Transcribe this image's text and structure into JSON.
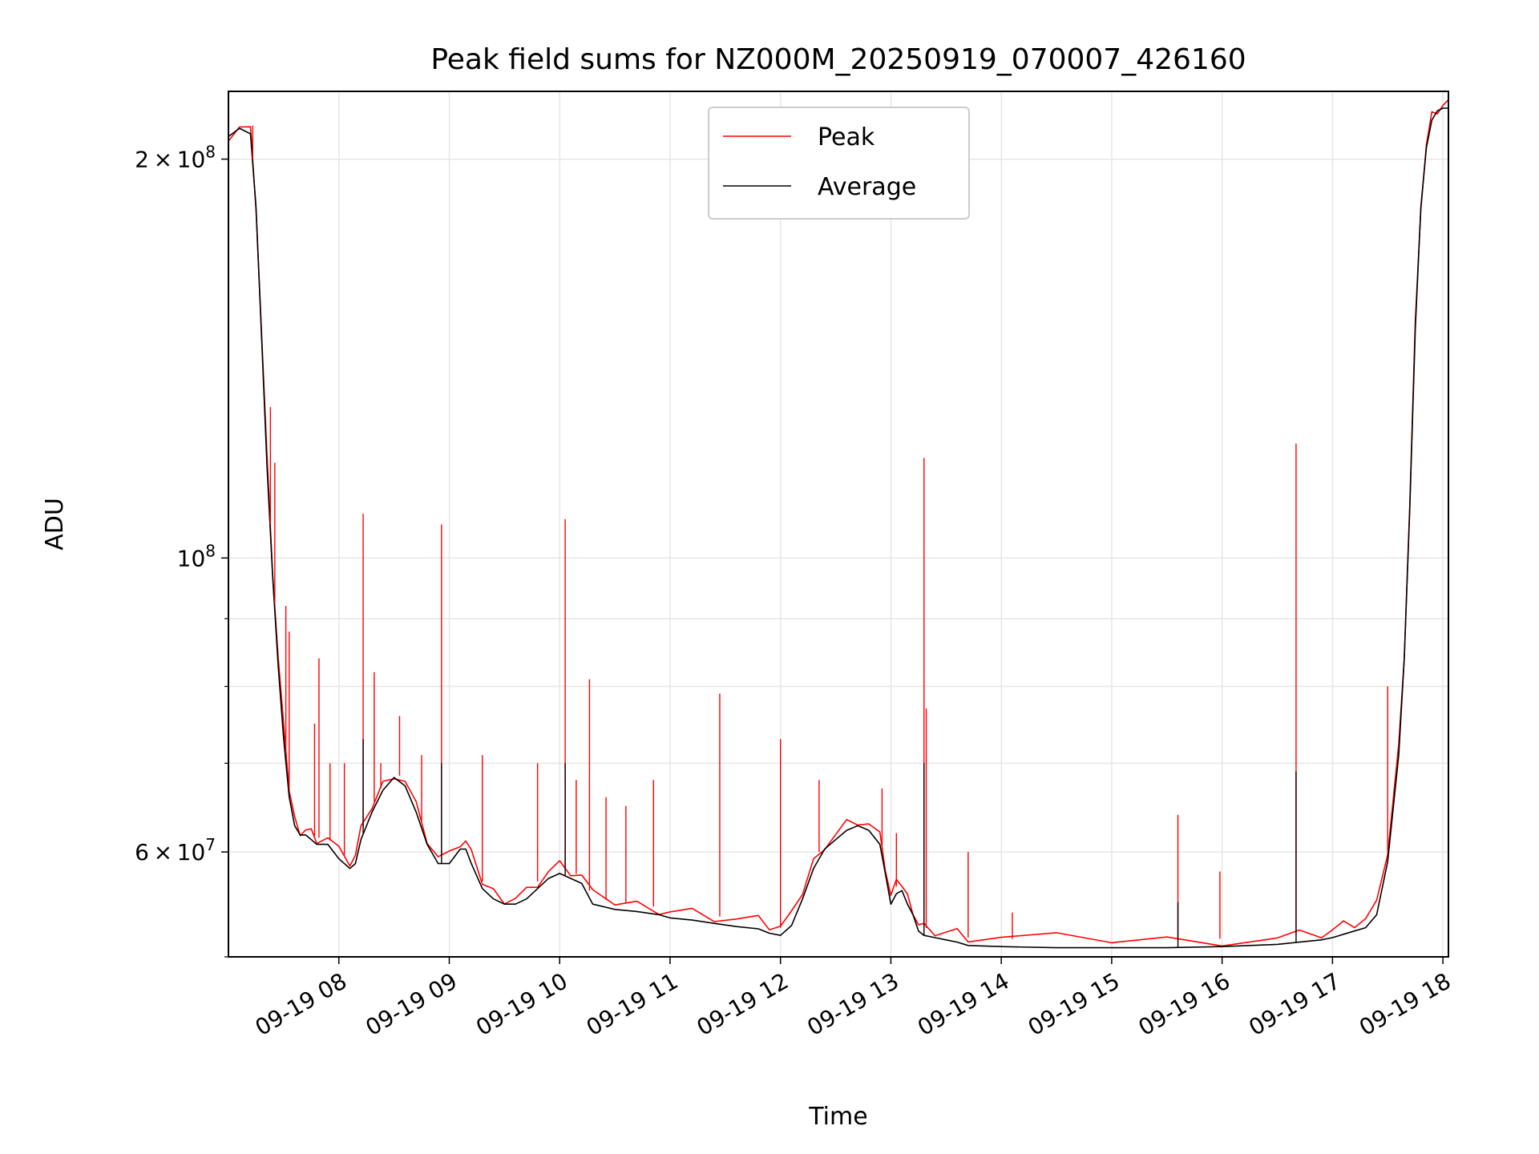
{
  "chart_data": {
    "type": "line",
    "title": "Peak field sums for NZ000M_20250919_070007_426160",
    "xlabel": "Time",
    "ylabel": "ADU",
    "yscale": "log",
    "xlim": [
      7.0,
      18.05
    ],
    "ylim": [
      50000000,
      225000000
    ],
    "grid": true,
    "legend_position": "upper center",
    "x_tick_values": [
      8,
      9,
      10,
      11,
      12,
      13,
      14,
      15,
      16,
      17,
      18
    ],
    "x_tick_labels": [
      "09-19 08",
      "09-19 09",
      "09-19 10",
      "09-19 11",
      "09-19 12",
      "09-19 13",
      "09-19 14",
      "09-19 15",
      "09-19 16",
      "09-19 17",
      "09-19 18"
    ],
    "y_major_ticks": [
      {
        "value": 60000000,
        "base": "6",
        "exp": "7"
      },
      {
        "value": 100000000,
        "base": "",
        "exp": "8"
      },
      {
        "value": 200000000,
        "base": "2",
        "exp": "8"
      }
    ],
    "y_minor_ticks": [
      50000000,
      70000000,
      80000000,
      90000000
    ],
    "series": [
      {
        "name": "Peak",
        "color": "#ff0000",
        "x": [
          7.0,
          7.1,
          7.2,
          7.25,
          7.3,
          7.35,
          7.4,
          7.45,
          7.5,
          7.55,
          7.6,
          7.65,
          7.7,
          7.75,
          7.8,
          7.9,
          8.0,
          8.1,
          8.15,
          8.2,
          8.3,
          8.4,
          8.5,
          8.6,
          8.7,
          8.8,
          8.9,
          9.0,
          9.1,
          9.15,
          9.2,
          9.3,
          9.4,
          9.5,
          9.6,
          9.7,
          9.8,
          9.9,
          10.0,
          10.1,
          10.2,
          10.3,
          10.5,
          10.7,
          10.9,
          11.0,
          11.2,
          11.4,
          11.6,
          11.8,
          11.9,
          12.0,
          12.1,
          12.2,
          12.3,
          12.4,
          12.5,
          12.6,
          12.7,
          12.8,
          12.9,
          12.95,
          13.0,
          13.05,
          13.1,
          13.15,
          13.2,
          13.25,
          13.3,
          13.4,
          13.5,
          13.6,
          13.7,
          14.0,
          14.5,
          15.0,
          15.5,
          16.0,
          16.5,
          16.7,
          16.9,
          17.0,
          17.1,
          17.2,
          17.3,
          17.4,
          17.5,
          17.6,
          17.65,
          17.7,
          17.75,
          17.8,
          17.85,
          17.9,
          17.95,
          18.0,
          18.05
        ],
        "values": [
          209000000,
          212000000,
          210000000,
          185000000,
          148000000,
          118000000,
          98000000,
          84000000,
          74000000,
          67000000,
          63500000,
          62500000,
          62500000,
          62000000,
          61500000,
          61500000,
          60000000,
          59000000,
          59500000,
          62000000,
          65000000,
          67500000,
          69000000,
          68000000,
          65000000,
          61500000,
          59500000,
          59500000,
          61000000,
          61000000,
          59500000,
          57000000,
          56000000,
          55500000,
          55500000,
          56000000,
          57000000,
          58000000,
          58500000,
          58000000,
          57500000,
          55500000,
          55000000,
          54800000,
          54500000,
          54200000,
          54000000,
          53700000,
          53400000,
          53200000,
          52800000,
          52600000,
          53500000,
          56000000,
          59000000,
          61000000,
          62000000,
          63000000,
          63500000,
          63000000,
          61500000,
          58500000,
          55500000,
          56500000,
          56800000,
          55500000,
          54500000,
          53000000,
          52600000,
          52400000,
          52200000,
          52000000,
          51700000,
          51600000,
          51500000,
          51500000,
          51500000,
          51600000,
          51800000,
          52000000,
          52200000,
          52400000,
          52700000,
          53000000,
          53300000,
          54500000,
          60000000,
          72000000,
          85000000,
          110000000,
          150000000,
          185000000,
          205000000,
          215000000,
          218000000,
          219000000,
          219000000
        ]
      },
      {
        "name": "Average",
        "color": "#000000",
        "x": [
          7.0,
          7.1,
          7.2,
          7.25,
          7.3,
          7.35,
          7.4,
          7.45,
          7.5,
          7.55,
          7.6,
          7.65,
          7.7,
          7.75,
          7.8,
          7.9,
          8.0,
          8.1,
          8.15,
          8.2,
          8.3,
          8.4,
          8.5,
          8.6,
          8.7,
          8.8,
          8.9,
          9.0,
          9.1,
          9.15,
          9.2,
          9.3,
          9.4,
          9.5,
          9.6,
          9.7,
          9.8,
          9.9,
          10.0,
          10.1,
          10.2,
          10.3,
          10.5,
          10.7,
          10.9,
          11.0,
          11.2,
          11.4,
          11.6,
          11.8,
          11.9,
          12.0,
          12.1,
          12.2,
          12.3,
          12.4,
          12.5,
          12.6,
          12.7,
          12.8,
          12.9,
          12.95,
          13.0,
          13.05,
          13.1,
          13.15,
          13.2,
          13.25,
          13.3,
          13.4,
          13.5,
          13.6,
          13.7,
          14.0,
          14.5,
          15.0,
          15.5,
          16.0,
          16.5,
          16.7,
          16.9,
          17.0,
          17.1,
          17.2,
          17.3,
          17.4,
          17.5,
          17.6,
          17.65,
          17.7,
          17.75,
          17.8,
          17.85,
          17.9,
          17.95,
          18.0,
          18.05
        ],
        "values": [
          208000000,
          211000000,
          209000000,
          184000000,
          147000000,
          117000000,
          97000000,
          83000000,
          73000000,
          66000000,
          62800000,
          61800000,
          61800000,
          61300000,
          60800000,
          60800000,
          59300000,
          58300000,
          58800000,
          61300000,
          64300000,
          66800000,
          68300000,
          67300000,
          64300000,
          60800000,
          58800000,
          58800000,
          60300000,
          60300000,
          58800000,
          56300000,
          55300000,
          54800000,
          54800000,
          55300000,
          56300000,
          57300000,
          57800000,
          57300000,
          56800000,
          54800000,
          54300000,
          54100000,
          53800000,
          53500000,
          53300000,
          53000000,
          52700000,
          52500000,
          52100000,
          51900000,
          52800000,
          55300000,
          58300000,
          60300000,
          61300000,
          62300000,
          62800000,
          62300000,
          60800000,
          57800000,
          54800000,
          55800000,
          56100000,
          54800000,
          53800000,
          52300000,
          51900000,
          51700000,
          51500000,
          51300000,
          51000000,
          50900000,
          50800000,
          50800000,
          50800000,
          50900000,
          51100000,
          51300000,
          51500000,
          51700000,
          52000000,
          52300000,
          52600000,
          53800000,
          59000000,
          71000000,
          84000000,
          109000000,
          149000000,
          184000000,
          204000000,
          214000000,
          217500000,
          218500000,
          218500000
        ]
      }
    ],
    "peak_spikes": [
      {
        "x": 7.22,
        "y": 212000000
      },
      {
        "x": 7.38,
        "y": 130000000
      },
      {
        "x": 7.42,
        "y": 118000000
      },
      {
        "x": 7.52,
        "y": 92000000
      },
      {
        "x": 7.55,
        "y": 88000000
      },
      {
        "x": 7.78,
        "y": 75000000
      },
      {
        "x": 7.82,
        "y": 84000000
      },
      {
        "x": 7.92,
        "y": 70000000
      },
      {
        "x": 8.05,
        "y": 70000000
      },
      {
        "x": 8.22,
        "y": 108000000
      },
      {
        "x": 8.32,
        "y": 82000000
      },
      {
        "x": 8.38,
        "y": 70000000
      },
      {
        "x": 8.55,
        "y": 76000000
      },
      {
        "x": 8.75,
        "y": 71000000
      },
      {
        "x": 8.93,
        "y": 106000000
      },
      {
        "x": 9.3,
        "y": 71000000
      },
      {
        "x": 9.8,
        "y": 70000000
      },
      {
        "x": 10.05,
        "y": 107000000
      },
      {
        "x": 10.15,
        "y": 68000000
      },
      {
        "x": 10.27,
        "y": 81000000
      },
      {
        "x": 10.42,
        "y": 66000000
      },
      {
        "x": 10.6,
        "y": 65000000
      },
      {
        "x": 10.85,
        "y": 68000000
      },
      {
        "x": 11.45,
        "y": 79000000
      },
      {
        "x": 12.0,
        "y": 73000000
      },
      {
        "x": 12.35,
        "y": 68000000
      },
      {
        "x": 12.92,
        "y": 67000000
      },
      {
        "x": 13.05,
        "y": 62000000
      },
      {
        "x": 13.3,
        "y": 119000000
      },
      {
        "x": 13.32,
        "y": 77000000
      },
      {
        "x": 13.7,
        "y": 60000000
      },
      {
        "x": 14.1,
        "y": 54000000
      },
      {
        "x": 15.6,
        "y": 64000000
      },
      {
        "x": 15.98,
        "y": 58000000
      },
      {
        "x": 16.67,
        "y": 122000000
      },
      {
        "x": 17.5,
        "y": 80000000
      }
    ],
    "average_spikes": [
      {
        "x": 8.22,
        "y": 73000000
      },
      {
        "x": 8.93,
        "y": 70000000
      },
      {
        "x": 10.05,
        "y": 70000000
      },
      {
        "x": 13.3,
        "y": 70000000
      },
      {
        "x": 15.6,
        "y": 55000000
      },
      {
        "x": 16.67,
        "y": 69000000
      }
    ]
  }
}
